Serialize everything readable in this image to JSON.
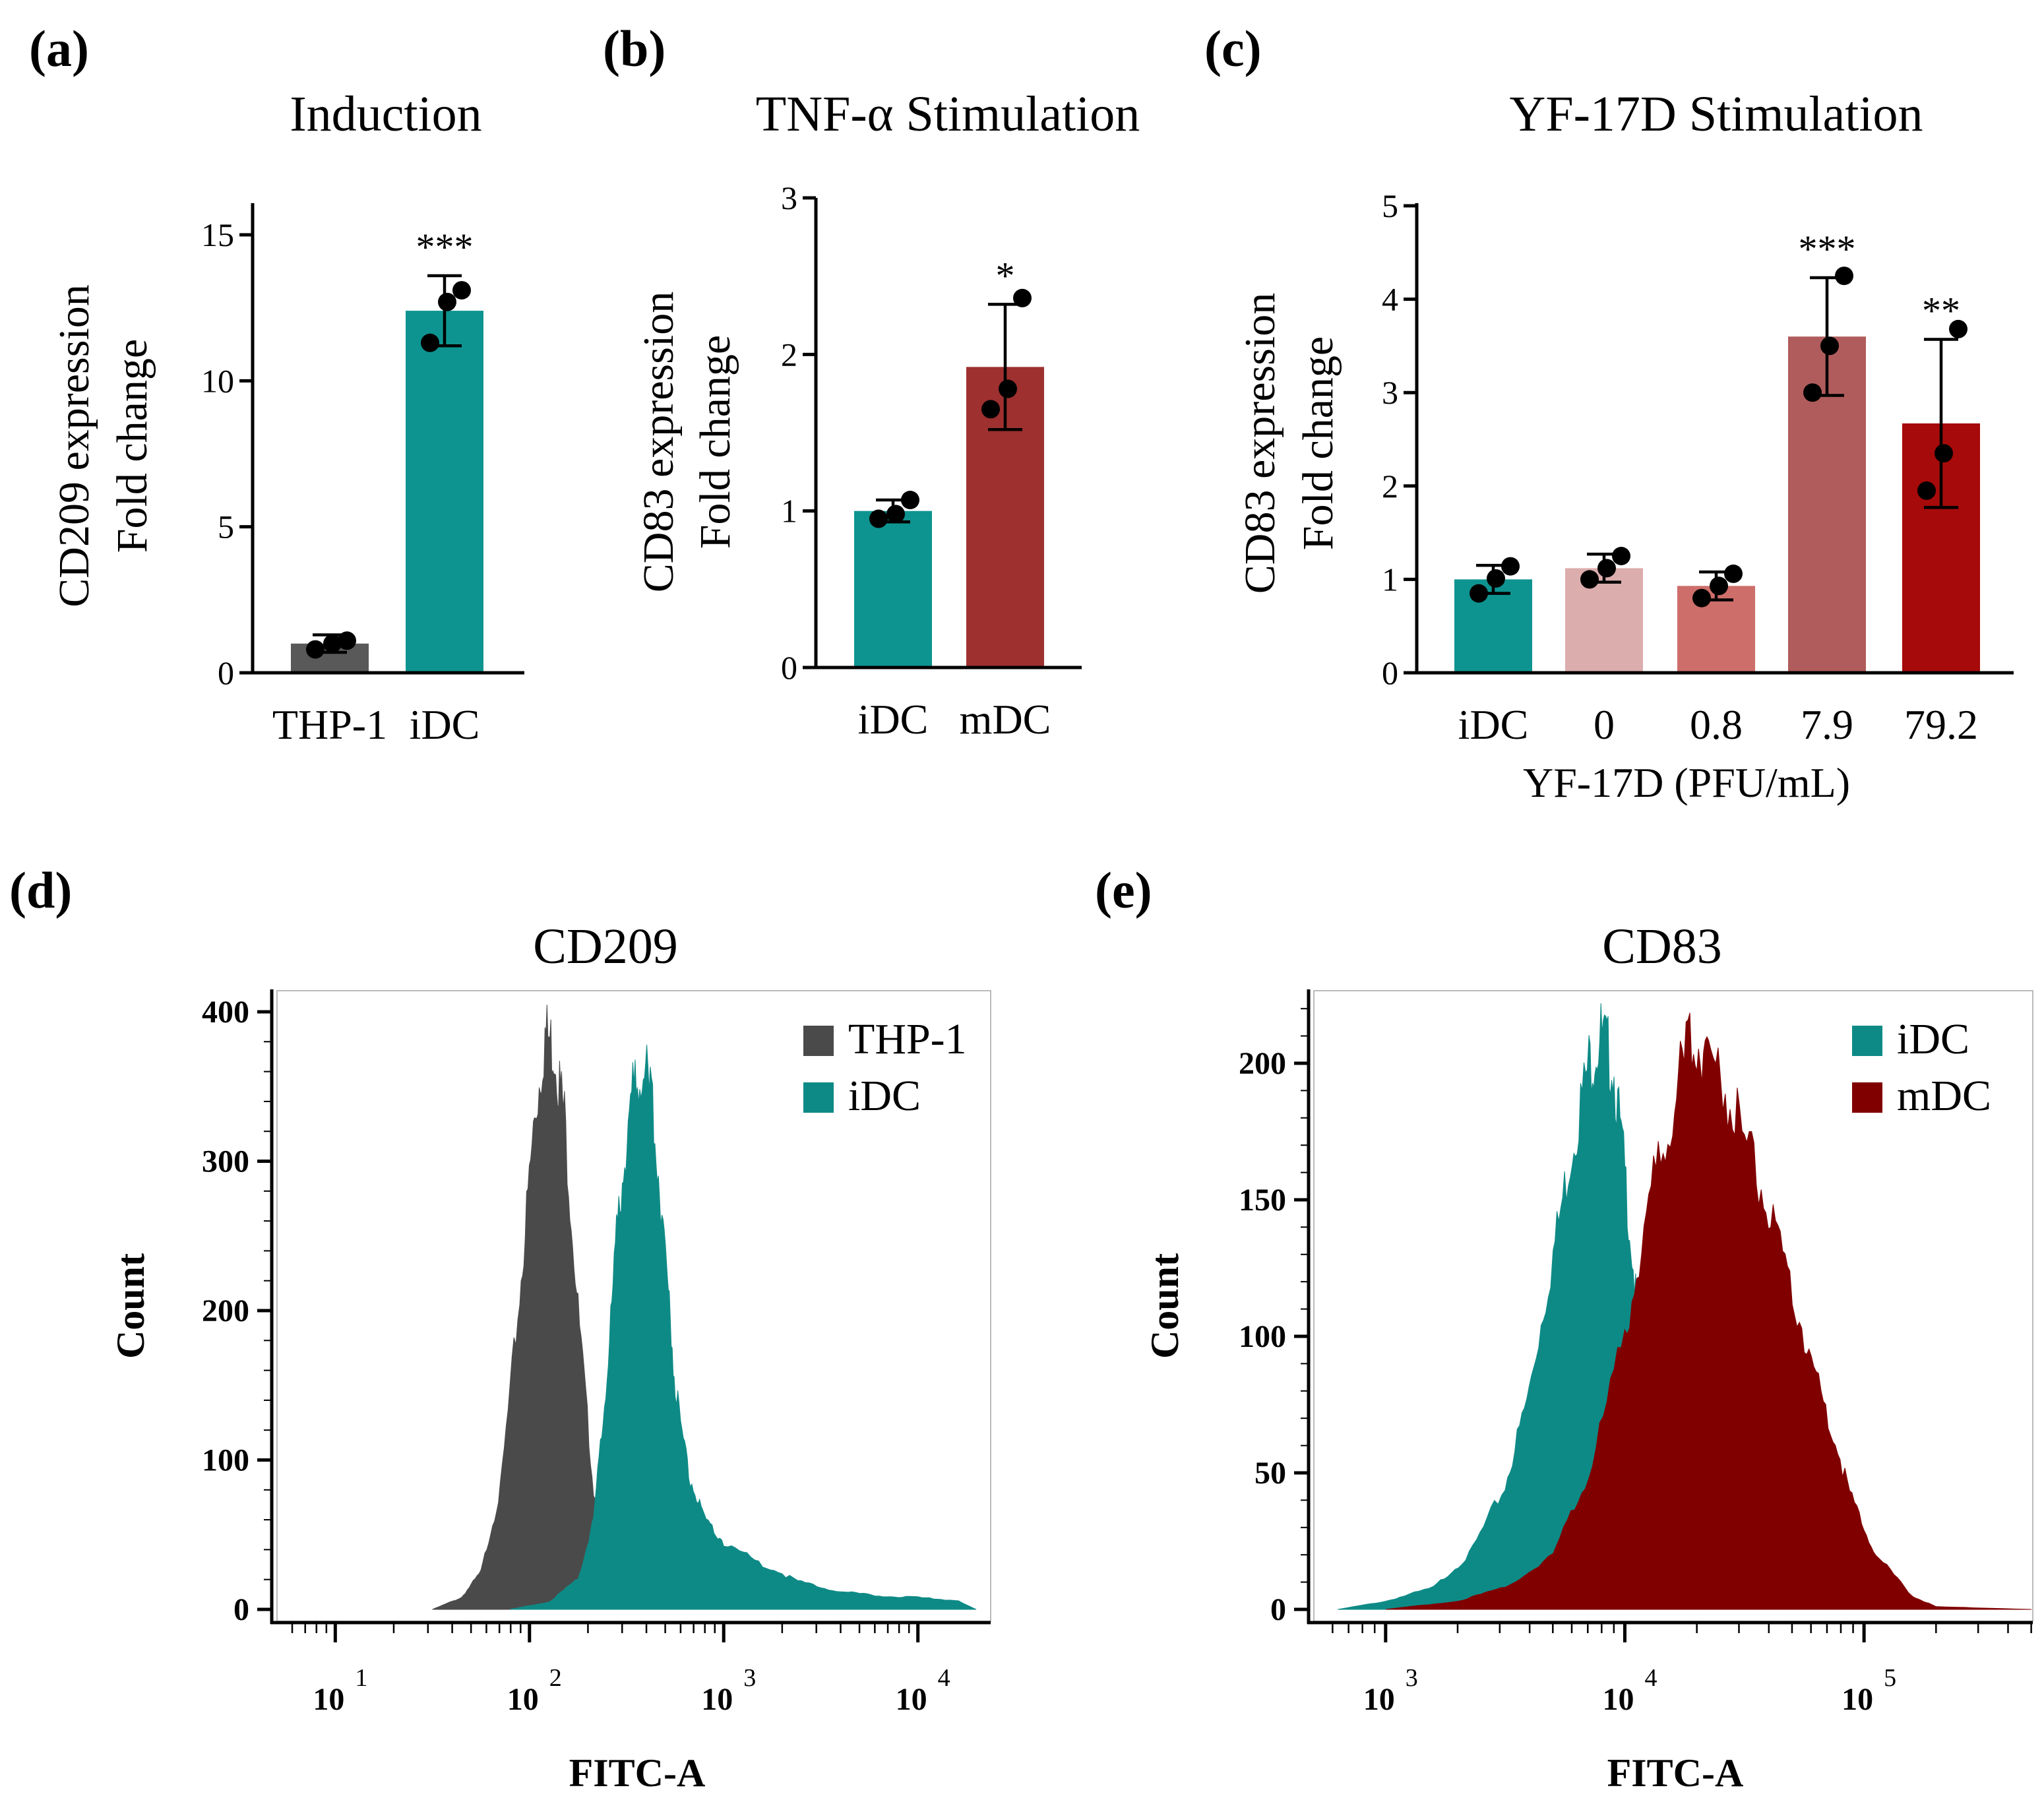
{
  "chart_data": [
    {
      "panel": "(a)",
      "type": "bar",
      "title": "Induction",
      "ylabel_line1": "CD209 expression",
      "ylabel_line2": "Fold change",
      "ylim": [
        0,
        16
      ],
      "yticks": [
        "0",
        "5",
        "10",
        "15"
      ],
      "categories": [
        "THP-1",
        "iDC"
      ],
      "values": [
        1.0,
        12.4
      ],
      "errors": [
        0.3,
        1.2
      ],
      "points": [
        [
          0.8,
          1.0,
          1.1
        ],
        [
          11.3,
          12.7,
          13.1
        ]
      ],
      "colors": [
        "#595959",
        "#0e9490"
      ],
      "significance": [
        "",
        "***"
      ]
    },
    {
      "panel": "(b)",
      "type": "bar",
      "title": "TNF-α Stimulation",
      "ylabel_line1": "CD83 expression",
      "ylabel_line2": "Fold change",
      "ylim": [
        0,
        3
      ],
      "yticks": [
        "0",
        "1",
        "2",
        "3"
      ],
      "categories": [
        "iDC",
        "mDC"
      ],
      "values": [
        1.0,
        1.92
      ],
      "errors": [
        0.07,
        0.4
      ],
      "points": [
        [
          0.95,
          0.98,
          1.07
        ],
        [
          1.65,
          1.78,
          2.36
        ]
      ],
      "colors": [
        "#0e9490",
        "#9e3030"
      ],
      "significance": [
        "",
        "*"
      ]
    },
    {
      "panel": "(c)",
      "type": "bar",
      "title": "YF-17D Stimulation",
      "ylabel_line1": "CD83 expression",
      "ylabel_line2": "Fold change",
      "xlabel": "YF-17D (PFU/mL)",
      "ylim": [
        0,
        5
      ],
      "yticks": [
        "0",
        "1",
        "2",
        "3",
        "4",
        "5"
      ],
      "categories": [
        "iDC",
        "0",
        "0.8",
        "7.9",
        "79.2"
      ],
      "values": [
        1.0,
        1.12,
        0.93,
        3.6,
        2.67
      ],
      "errors": [
        0.15,
        0.15,
        0.15,
        0.63,
        0.9
      ],
      "points": [
        [
          0.85,
          1.01,
          1.14
        ],
        [
          1.0,
          1.12,
          1.25
        ],
        [
          0.8,
          0.93,
          1.06
        ],
        [
          3.0,
          3.5,
          4.25
        ],
        [
          1.95,
          2.35,
          3.68
        ]
      ],
      "colors": [
        "#0e9490",
        "#dcadad",
        "#cd6e6a",
        "#b05c5c",
        "#a60a0a"
      ],
      "significance": [
        "",
        "",
        "",
        "***",
        "**"
      ]
    },
    {
      "panel": "(d)",
      "type": "area",
      "title": "CD209",
      "xlabel": "FITC-A",
      "ylabel": "Count",
      "x_scale": "log10",
      "xlim": [
        0.7,
        4.3
      ],
      "ylim": [
        0,
        410
      ],
      "yticks": [
        "0",
        "100",
        "200",
        "300",
        "400"
      ],
      "xticks": [
        {
          "base": "10",
          "exp": "1"
        },
        {
          "base": "10",
          "exp": "2"
        },
        {
          "base": "10",
          "exp": "3"
        },
        {
          "base": "10",
          "exp": "4"
        }
      ],
      "series": [
        {
          "name": "THP-1",
          "color": "#4a4a4a",
          "log_x": [
            1.5,
            1.65,
            1.75,
            1.85,
            1.95,
            2.02,
            2.08,
            2.13,
            2.18,
            2.25,
            2.33,
            2.42,
            2.5,
            2.6
          ],
          "counts": [
            0,
            8,
            25,
            80,
            210,
            320,
            385,
            375,
            330,
            200,
            80,
            20,
            5,
            0
          ]
        },
        {
          "name": "iDC",
          "color": "#0e8a86",
          "log_x": [
            1.9,
            2.1,
            2.25,
            2.33,
            2.4,
            2.46,
            2.52,
            2.58,
            2.64,
            2.7,
            2.75,
            2.82,
            2.9,
            3.0,
            3.2,
            3.4,
            3.6,
            3.8,
            4.0,
            4.2,
            4.3
          ],
          "counts": [
            0,
            5,
            20,
            60,
            160,
            270,
            340,
            370,
            330,
            240,
            150,
            90,
            60,
            45,
            30,
            18,
            12,
            9,
            8,
            6,
            0
          ]
        }
      ]
    },
    {
      "panel": "(e)",
      "type": "area",
      "title": "CD83",
      "xlabel": "FITC-A",
      "ylabel": "Count",
      "x_scale": "log10",
      "xlim": [
        2.7,
        5.7
      ],
      "ylim": [
        0,
        225
      ],
      "yticks": [
        "0",
        "50",
        "100",
        "150",
        "200"
      ],
      "xticks": [
        {
          "base": "10",
          "exp": "3"
        },
        {
          "base": "10",
          "exp": "4"
        },
        {
          "base": "10",
          "exp": "5"
        }
      ],
      "series": [
        {
          "name": "iDC",
          "color": "#0e8a86",
          "log_x": [
            2.8,
            3.0,
            3.2,
            3.35,
            3.5,
            3.6,
            3.7,
            3.78,
            3.85,
            3.9,
            3.95,
            4.0,
            4.05,
            4.12,
            4.2,
            4.3,
            4.45
          ],
          "counts": [
            0,
            3,
            8,
            20,
            45,
            80,
            130,
            170,
            200,
            210,
            200,
            160,
            110,
            60,
            25,
            8,
            0
          ]
        },
        {
          "name": "mDC",
          "color": "#800000",
          "log_x": [
            3.0,
            3.3,
            3.5,
            3.7,
            3.85,
            4.0,
            4.1,
            4.2,
            4.28,
            4.35,
            4.45,
            4.55,
            4.65,
            4.75,
            4.85,
            4.95,
            5.05,
            5.2,
            5.3,
            5.7
          ],
          "counts": [
            0,
            3,
            8,
            20,
            50,
            100,
            150,
            185,
            210,
            205,
            185,
            160,
            130,
            100,
            70,
            40,
            20,
            5,
            1,
            0
          ]
        }
      ]
    }
  ]
}
